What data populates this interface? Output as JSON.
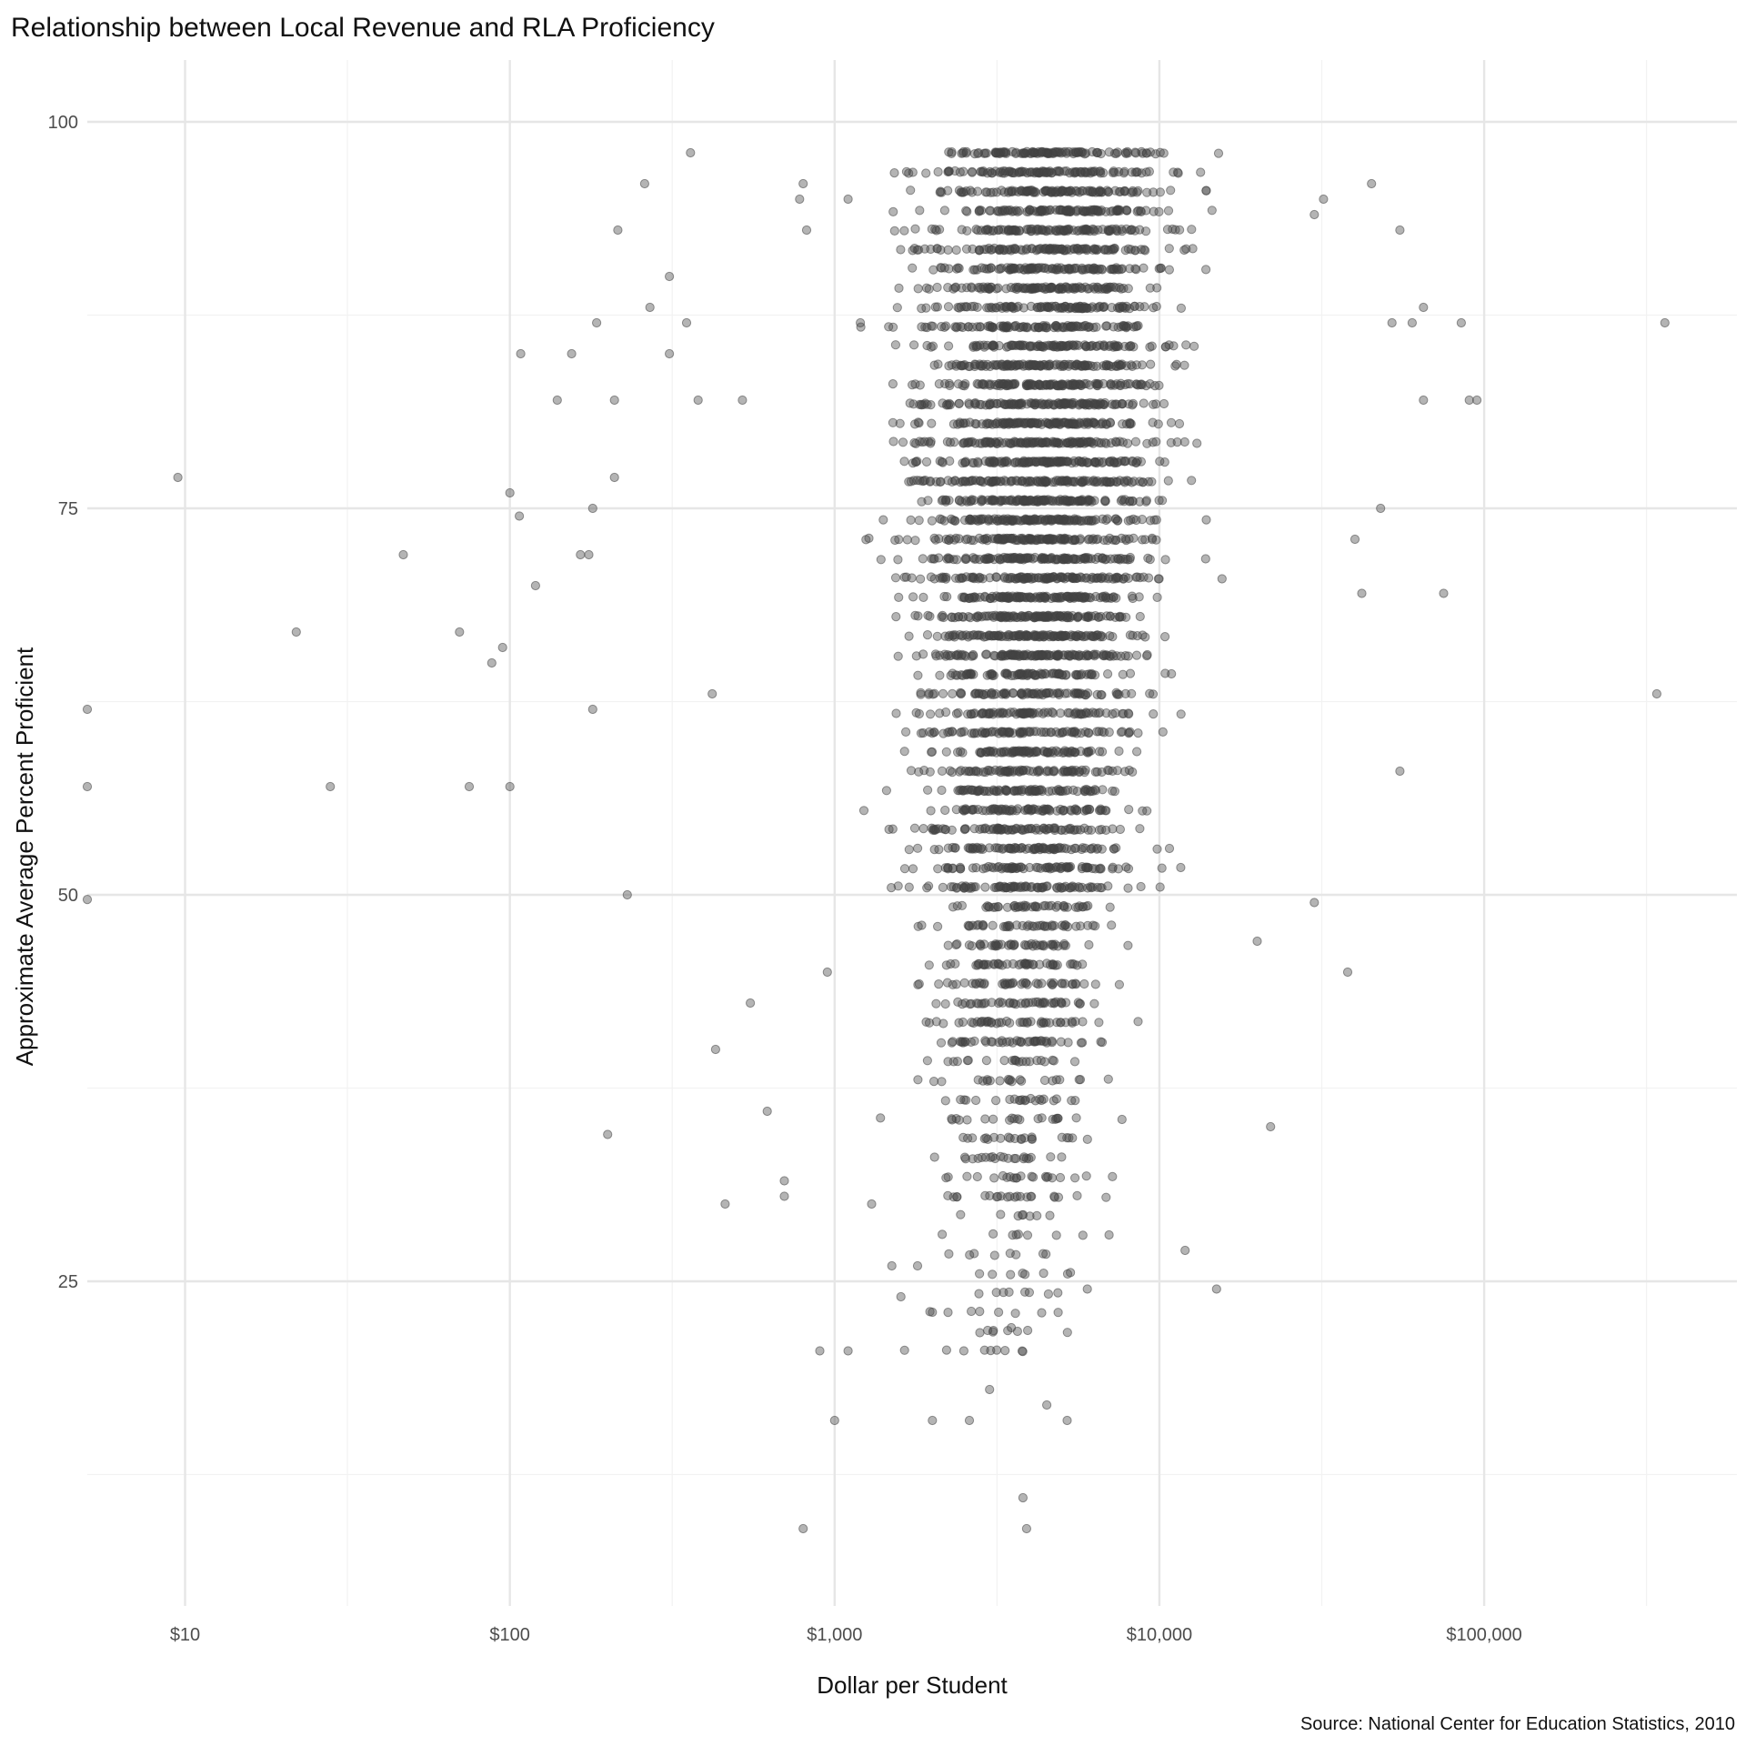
{
  "chart_data": {
    "type": "scatter",
    "title": "Relationship between Local Revenue and RLA Proficiency",
    "xlabel": "Dollar per Student",
    "ylabel": "Approximate Average Percent Proficient",
    "caption": "Source: National Center for Education Statistics, 2010",
    "x_scale": "log10",
    "xlim": [
      5,
      600000
    ],
    "ylim": [
      4,
      104
    ],
    "x_ticks": [
      {
        "value": 10,
        "label": "$10"
      },
      {
        "value": 100,
        "label": "$100"
      },
      {
        "value": 1000,
        "label": "$1,000"
      },
      {
        "value": 10000,
        "label": "$10,000"
      },
      {
        "value": 100000,
        "label": "$100,000"
      }
    ],
    "y_ticks": [
      {
        "value": 25,
        "label": "25"
      },
      {
        "value": 50,
        "label": "50"
      },
      {
        "value": 75,
        "label": "75"
      },
      {
        "value": 100,
        "label": "100"
      }
    ],
    "grid": true,
    "legend": "none",
    "point_color": "#444444",
    "point_opacity": 0.4,
    "points_note": "Dense cloud of ~10,000 district points; representative points listed below, remainder concentrated between $1,000 and $25,000 and 20–98% proficient.",
    "points": [
      [
        9.5,
        77
      ],
      [
        5,
        62
      ],
      [
        5,
        57
      ],
      [
        5,
        49.7
      ],
      [
        22,
        67
      ],
      [
        28,
        57
      ],
      [
        47,
        72
      ],
      [
        70,
        67
      ],
      [
        75,
        57
      ],
      [
        88,
        65
      ],
      [
        95,
        66
      ],
      [
        100,
        57
      ],
      [
        100,
        76
      ],
      [
        107,
        74.5
      ],
      [
        108,
        85
      ],
      [
        120,
        70
      ],
      [
        140,
        82
      ],
      [
        155,
        85
      ],
      [
        165,
        72
      ],
      [
        175,
        72
      ],
      [
        180,
        75
      ],
      [
        180,
        62
      ],
      [
        185,
        87
      ],
      [
        200,
        34.5
      ],
      [
        210,
        82
      ],
      [
        210,
        77
      ],
      [
        215,
        93
      ],
      [
        230,
        50
      ],
      [
        260,
        96
      ],
      [
        270,
        88
      ],
      [
        310,
        90
      ],
      [
        310,
        85
      ],
      [
        350,
        87
      ],
      [
        360,
        98
      ],
      [
        380,
        82
      ],
      [
        420,
        63
      ],
      [
        430,
        40
      ],
      [
        460,
        30
      ],
      [
        520,
        82
      ],
      [
        550,
        43
      ],
      [
        620,
        36
      ],
      [
        700,
        30.5
      ],
      [
        700,
        31.5
      ],
      [
        780,
        95
      ],
      [
        800,
        96
      ],
      [
        800,
        9
      ],
      [
        820,
        93
      ],
      [
        900,
        20.5
      ],
      [
        950,
        45
      ],
      [
        1000,
        16
      ],
      [
        1100,
        20.5
      ],
      [
        1100,
        95
      ],
      [
        1200,
        87
      ],
      [
        1300,
        30
      ],
      [
        1500,
        26
      ],
      [
        1600,
        24
      ],
      [
        1800,
        26
      ],
      [
        2000,
        16
      ],
      [
        2000,
        23
      ],
      [
        2500,
        20.5
      ],
      [
        2600,
        16
      ],
      [
        3000,
        18
      ],
      [
        3500,
        22
      ],
      [
        3800,
        11
      ],
      [
        3900,
        9
      ],
      [
        4500,
        17
      ],
      [
        5200,
        16
      ],
      [
        6000,
        24.5
      ],
      [
        7000,
        28
      ],
      [
        12000,
        27
      ],
      [
        15000,
        24.5
      ],
      [
        20000,
        47
      ],
      [
        22000,
        35
      ],
      [
        30000,
        49.5
      ],
      [
        30000,
        94
      ],
      [
        32000,
        95
      ],
      [
        38000,
        45
      ],
      [
        40000,
        73
      ],
      [
        42000,
        69.5
      ],
      [
        45000,
        96
      ],
      [
        48000,
        75
      ],
      [
        52000,
        87
      ],
      [
        55000,
        93
      ],
      [
        55000,
        58
      ],
      [
        60000,
        87
      ],
      [
        65000,
        88
      ],
      [
        65000,
        82
      ],
      [
        75000,
        69.5
      ],
      [
        85000,
        87
      ],
      [
        90000,
        82
      ],
      [
        95000,
        82
      ],
      [
        340000,
        63
      ],
      [
        360000,
        87
      ]
    ]
  }
}
